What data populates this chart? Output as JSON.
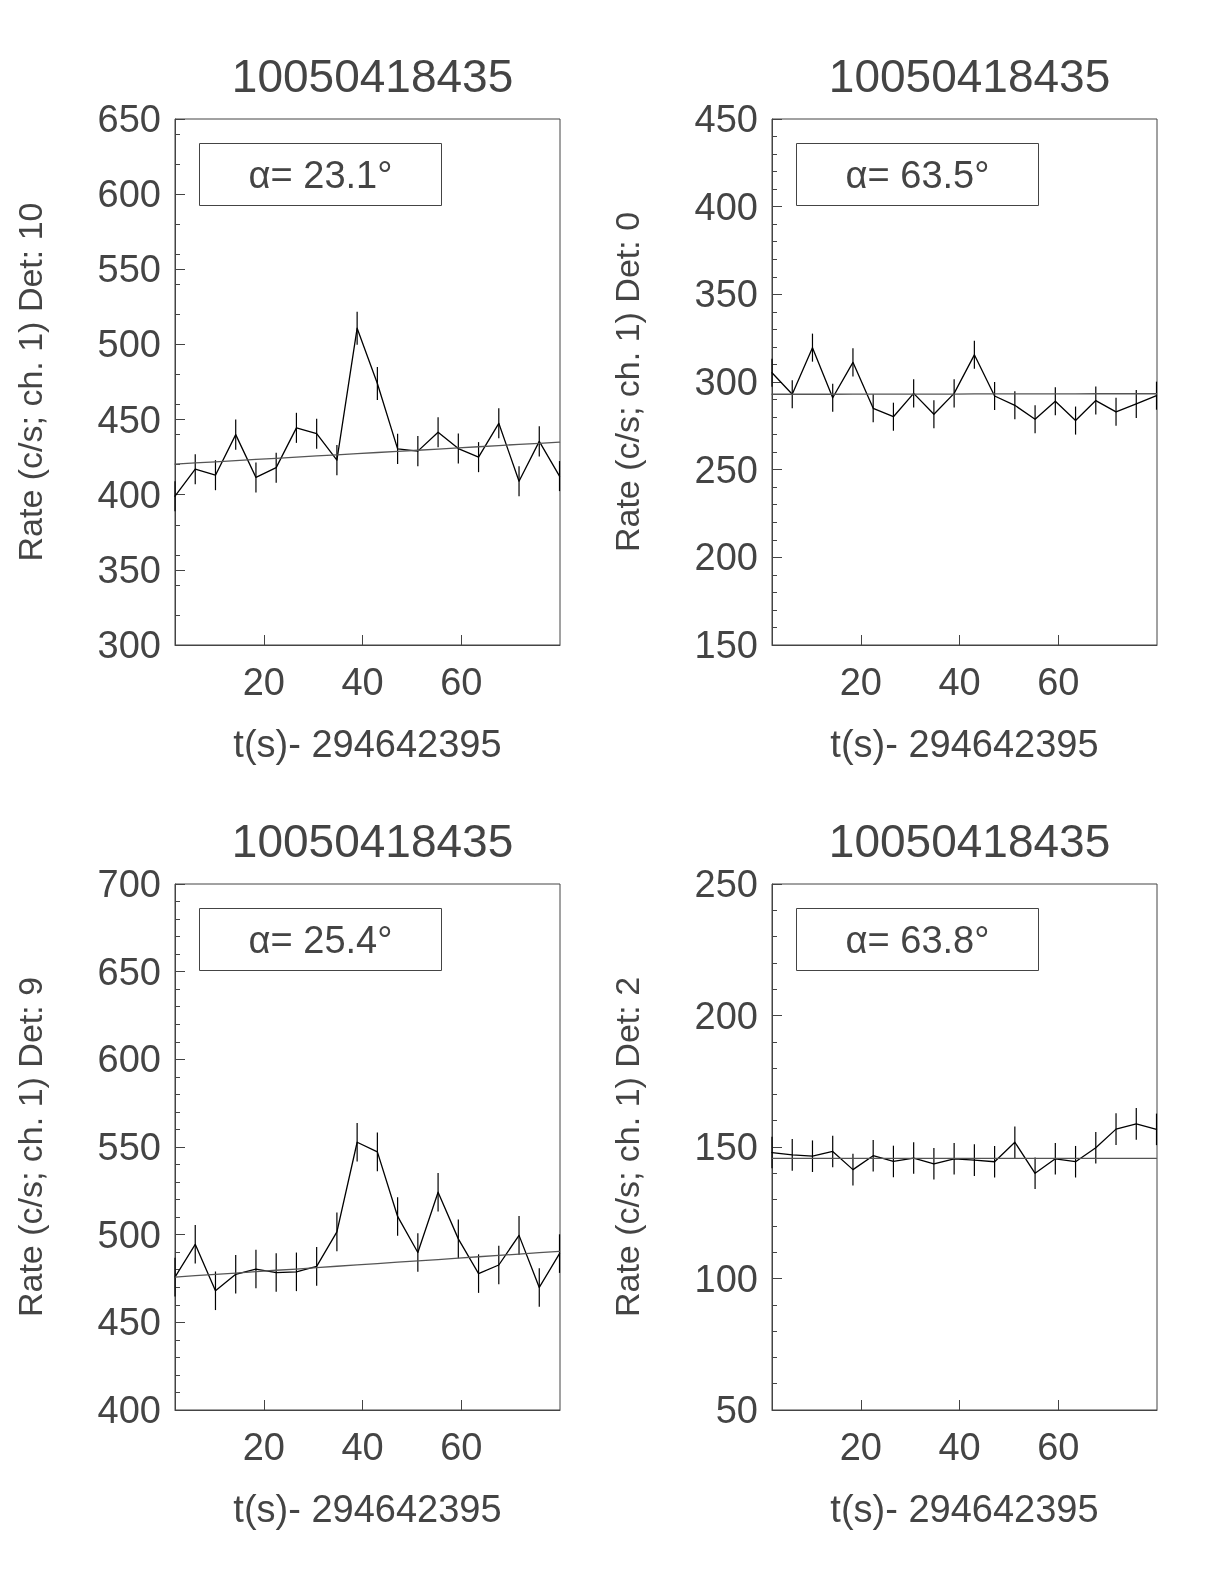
{
  "chart_data": [
    {
      "type": "line",
      "title": "10050418435",
      "xlabel": "t(s)- 294642395",
      "ylabel": "Rate (c/s; ch. 1) Det: 10",
      "annotations": [
        "α= 23.1°"
      ],
      "xlim": [
        2,
        80
      ],
      "xticks": [
        20,
        40,
        60
      ],
      "ylim": [
        300,
        650
      ],
      "yticks": [
        300,
        350,
        400,
        450,
        500,
        550,
        600,
        650
      ],
      "grid": false,
      "marker": "none",
      "line_style": "solid",
      "x": [
        2,
        6.1,
        10.2,
        14.3,
        18.4,
        22.5,
        26.6,
        30.7,
        34.8,
        38.9,
        43.0,
        47.1,
        51.2,
        55.3,
        59.4,
        63.5,
        67.6,
        71.7,
        75.8,
        79.9
      ],
      "series": [
        {
          "color": "#000000",
          "values": [
            399,
            417,
            413,
            440,
            411.5,
            418,
            444.5,
            440.6,
            423,
            510.8,
            474,
            430.5,
            429,
            441.5,
            430.7,
            425,
            447.5,
            409,
            435.5,
            412.4
          ],
          "errors": [
            10,
            10,
            10,
            10,
            10,
            10,
            10,
            10,
            10,
            11,
            11,
            10,
            10,
            10,
            10,
            10,
            10,
            10,
            10,
            10
          ]
        },
        {
          "type": "line",
          "color": "#555555",
          "values": [
            420.4,
            421.2,
            421.9,
            422.7,
            423.5,
            424.2,
            425.0,
            425.8,
            426.5,
            427.3,
            428.1,
            428.8,
            429.6,
            430.4,
            431.1,
            431.9,
            432.7,
            433.5,
            434.2,
            435.0
          ]
        }
      ]
    },
    {
      "type": "line",
      "title": "10050418435",
      "xlabel": "t(s)- 294642395",
      "ylabel": "Rate (c/s; ch. 1) Det: 0",
      "annotations": [
        "α= 63.5°"
      ],
      "xlim": [
        2,
        80
      ],
      "xticks": [
        20,
        40,
        60
      ],
      "ylim": [
        150,
        450
      ],
      "yticks": [
        150,
        200,
        250,
        300,
        350,
        400,
        450
      ],
      "grid": false,
      "marker": "none",
      "line_style": "solid",
      "x": [
        2,
        6.1,
        10.2,
        14.3,
        18.4,
        22.5,
        26.6,
        30.7,
        34.8,
        38.9,
        43.0,
        47.1,
        51.2,
        55.3,
        59.4,
        63.5,
        67.6,
        71.7,
        75.8,
        79.9
      ],
      "series": [
        {
          "color": "#000000",
          "values": [
            305.3,
            293,
            319.6,
            291,
            311.2,
            285,
            280.2,
            293.5,
            281.6,
            293.5,
            315.5,
            292,
            286.7,
            278.8,
            289,
            278,
            289.4,
            283,
            287.5,
            292.2
          ],
          "errors": [
            8,
            8,
            8,
            8,
            8,
            8,
            8,
            8,
            8,
            8,
            8,
            8,
            8,
            8,
            8,
            8,
            8,
            8,
            8,
            8
          ]
        },
        {
          "type": "line",
          "color": "#555555",
          "values": [
            293,
            293,
            293,
            293,
            293.1,
            293.1,
            293.1,
            293.1,
            293.1,
            293.1,
            293.2,
            293.2,
            293.2,
            293.2,
            293.2,
            293.2,
            293.3,
            293.3,
            293.3,
            293.3
          ]
        }
      ]
    },
    {
      "type": "line",
      "title": "10050418435",
      "xlabel": "t(s)- 294642395",
      "ylabel": "Rate (c/s; ch. 1) Det: 9",
      "annotations": [
        "α= 25.4°"
      ],
      "xlim": [
        2,
        80
      ],
      "xticks": [
        20,
        40,
        60
      ],
      "ylim": [
        400,
        700
      ],
      "yticks": [
        400,
        450,
        500,
        550,
        600,
        650,
        700
      ],
      "grid": false,
      "marker": "none",
      "line_style": "solid",
      "x": [
        2,
        6.1,
        10.2,
        14.3,
        18.4,
        22.5,
        26.6,
        30.7,
        34.8,
        38.9,
        43.0,
        47.1,
        51.2,
        55.3,
        59.4,
        63.5,
        67.6,
        71.7,
        75.8,
        79.9
      ],
      "series": [
        {
          "color": "#000000",
          "values": [
            475.8,
            494.5,
            468,
            477.4,
            480.4,
            478.4,
            478.8,
            481.9,
            501.6,
            552.7,
            547.2,
            510.4,
            489.8,
            524.2,
            497.6,
            477.8,
            482.7,
            499.6,
            469.9,
            489.2
          ],
          "errors": [
            11,
            11,
            11,
            11,
            11,
            11,
            11,
            11,
            11,
            11,
            11,
            11,
            11,
            11,
            11,
            11,
            11,
            11,
            11,
            11
          ]
        },
        {
          "type": "line",
          "color": "#555555",
          "values": [
            475.8,
            476.6,
            477.3,
            478.1,
            478.9,
            479.7,
            480.4,
            481.2,
            482.0,
            482.8,
            483.5,
            484.3,
            485.1,
            485.8,
            486.6,
            487.4,
            488.2,
            488.9,
            489.7,
            490.5
          ]
        }
      ]
    },
    {
      "type": "line",
      "title": "10050418435",
      "xlabel": "t(s)- 294642395",
      "ylabel": "Rate (c/s; ch. 1) Det: 2",
      "annotations": [
        "α= 63.8°"
      ],
      "xlim": [
        2,
        80
      ],
      "xticks": [
        20,
        40,
        60
      ],
      "ylim": [
        50,
        250
      ],
      "yticks": [
        50,
        100,
        150,
        200,
        250
      ],
      "grid": false,
      "marker": "none",
      "line_style": "solid",
      "x": [
        2,
        6.1,
        10.2,
        14.3,
        18.4,
        22.5,
        26.6,
        30.7,
        34.8,
        38.9,
        43.0,
        47.1,
        51.2,
        55.3,
        59.4,
        63.5,
        67.6,
        71.7,
        75.8,
        79.9
      ],
      "series": [
        {
          "color": "#000000",
          "values": [
            147.9,
            147,
            146.5,
            148.3,
            141.4,
            146.7,
            144.5,
            145.8,
            143.6,
            145.5,
            145,
            144.4,
            151.8,
            140,
            145.5,
            144.4,
            149.7,
            156.8,
            158.8,
            156.7
          ],
          "errors": [
            6,
            6,
            6,
            6,
            6,
            6,
            6,
            6,
            6,
            6,
            6,
            6,
            6,
            6,
            6,
            6,
            6,
            6,
            6,
            6
          ]
        },
        {
          "type": "line",
          "color": "#555555",
          "values": [
            145.7,
            145.7,
            145.7,
            145.7,
            145.7,
            145.7,
            145.7,
            145.7,
            145.7,
            145.7,
            145.7,
            145.7,
            145.7,
            145.7,
            145.7,
            145.7,
            145.7,
            145.7,
            145.7,
            145.7
          ]
        }
      ]
    }
  ]
}
